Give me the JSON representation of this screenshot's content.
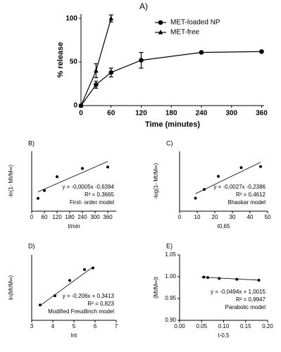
{
  "chart_data": [
    {
      "type": "line",
      "title": "A)",
      "y_label": "% release",
      "x_label": "Time (minutes)",
      "xlim": [
        0,
        365
      ],
      "ylim": [
        0,
        105
      ],
      "xticks": [
        0,
        60,
        120,
        180,
        240,
        300,
        360
      ],
      "yticks": [
        0,
        50,
        100
      ],
      "color": "#000000",
      "series": [
        {
          "name": "MET-loaded NP",
          "marker": "circle",
          "x": [
            0,
            30,
            60,
            120,
            240,
            360
          ],
          "values": [
            0,
            24,
            38,
            52,
            61,
            62
          ],
          "errors": [
            0,
            4,
            5,
            9,
            1,
            1
          ]
        },
        {
          "name": "MET-free",
          "marker": "triangle",
          "x": [
            0,
            30,
            60
          ],
          "values": [
            0,
            40,
            100
          ],
          "errors": [
            0,
            8,
            4
          ]
        }
      ]
    },
    {
      "type": "scatter",
      "title": "B)",
      "y_label": "-ln(1- Mt/M∞)",
      "x_label": "t/min",
      "xlim": [
        0,
        400
      ],
      "ylim": [
        0,
        1.3
      ],
      "xticks": [
        0,
        60,
        120,
        180,
        240,
        300,
        360
      ],
      "color": "#000000",
      "points": {
        "x": [
          30,
          60,
          120,
          240,
          360
        ],
        "values": [
          0.28,
          0.45,
          0.75,
          0.93,
          0.96
        ]
      },
      "fit": {
        "x": [
          30,
          360
        ],
        "values": [
          0.42,
          1.08
        ]
      },
      "annotations": [
        "y = -0,0005x -0,6394",
        "R² = 0,3665",
        "First- order model"
      ]
    },
    {
      "type": "scatter",
      "title": "C)",
      "y_label": "-log(1- Mt/M∞)",
      "x_label": "t0,65",
      "xlim": [
        0,
        50
      ],
      "ylim": [
        0,
        0.55
      ],
      "xticks": [
        0,
        10,
        20,
        30,
        40,
        50
      ],
      "color": "#000000",
      "points": {
        "x": [
          9,
          14,
          22,
          35,
          46
        ],
        "values": [
          0.12,
          0.2,
          0.32,
          0.4,
          0.41
        ]
      },
      "fit": {
        "x": [
          9,
          46
        ],
        "values": [
          0.16,
          0.45
        ]
      },
      "annotations": [
        "y = -0,0027x -0,2386",
        "R² = 0,4612",
        "Bhaskar model"
      ]
    },
    {
      "type": "scatter",
      "title": "D)",
      "y_label": "ln(Mt/M∞)",
      "x_label": "lnt",
      "xlim": [
        3,
        7
      ],
      "ylim": [
        0,
        1.2
      ],
      "xticks": [
        3,
        4,
        5,
        6,
        7
      ],
      "color": "#000000",
      "points": {
        "x": [
          3.4,
          4.1,
          4.8,
          5.5,
          5.9
        ],
        "values": [
          0.28,
          0.45,
          0.73,
          0.93,
          0.96
        ]
      },
      "fit": {
        "x": [
          3.4,
          5.9
        ],
        "values": [
          0.27,
          0.98
        ]
      },
      "annotations": [
        "y = -0,206x + 0,3413",
        "R² = 0,823",
        "Modified Freudlinch model"
      ]
    },
    {
      "type": "scatter",
      "title": "E)",
      "y_label": "(Mt/M∞)t",
      "x_label": "t-0,5",
      "xlim": [
        0,
        0.2
      ],
      "ylim": [
        0.9,
        1.05
      ],
      "xticks": [
        {
          "value": 0,
          "label": "0.00"
        },
        0.05,
        {
          "value": 0.1,
          "label": "0.10"
        },
        0.15,
        {
          "value": 0.2,
          "label": "0.20"
        }
      ],
      "yticks": [
        {
          "value": 0.9,
          "label": "0.90"
        },
        0.95,
        {
          "value": 1,
          "label": "1.00"
        },
        1.05
      ],
      "color": "#000000",
      "points": {
        "x": [
          0.055,
          0.064,
          0.09,
          0.13,
          0.18
        ],
        "values": [
          0.999,
          0.998,
          0.996,
          0.994,
          0.992
        ]
      },
      "fit": {
        "x": [
          0.05,
          0.18
        ],
        "values": [
          0.999,
          0.992
        ]
      },
      "annotations": [
        "y = -0,0494x + 1,0015",
        "R² = 0,9947",
        "Parabolic model"
      ]
    }
  ]
}
